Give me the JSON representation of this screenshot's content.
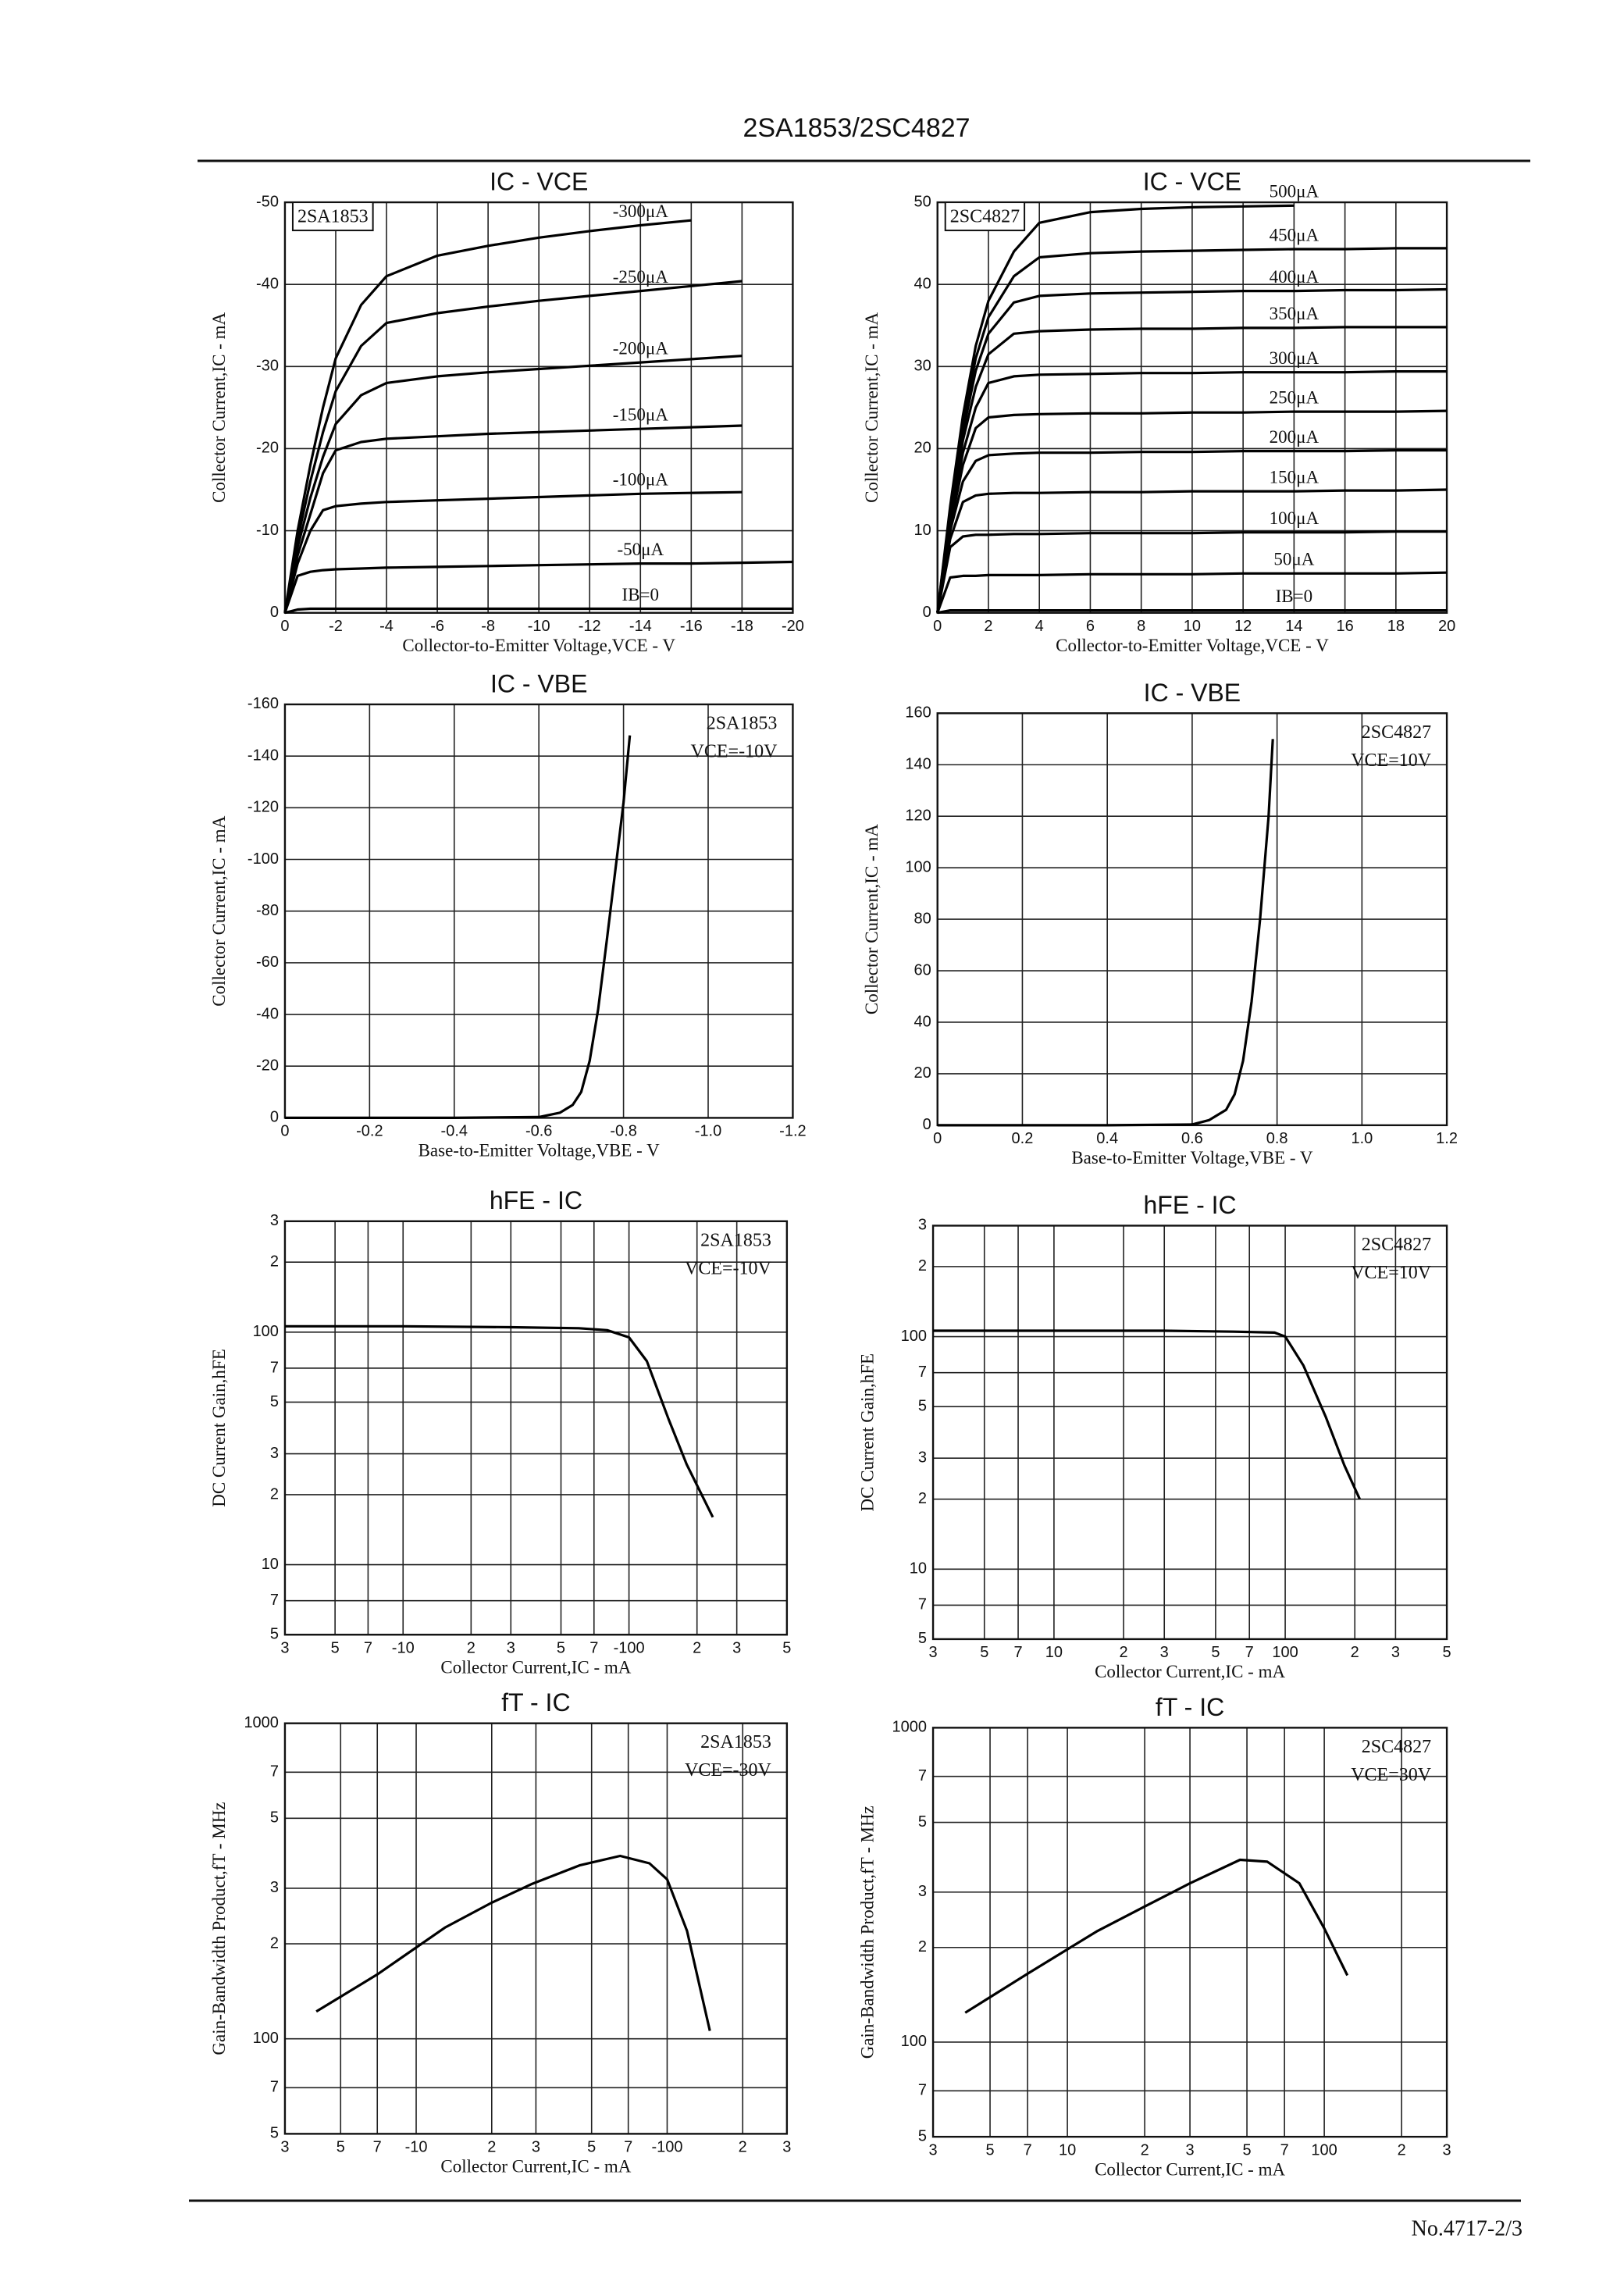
{
  "header": "2SA1853/2SC4827",
  "footer": "No.4717-2/3",
  "chart_data": [
    {
      "type": "line",
      "title": "IC - VCE",
      "annotations": [
        "2SA1853"
      ],
      "xlabel": "Collector-to-Emitter Voltage,VCE - V",
      "ylabel": "Collector Current,IC - mA",
      "grid": true,
      "xlim": [
        0,
        -20
      ],
      "xticks": [
        0,
        -2,
        -4,
        -6,
        -8,
        -10,
        -12,
        -14,
        -16,
        -18,
        -20
      ],
      "ylim": [
        0,
        -50
      ],
      "yticks": [
        0,
        -10,
        -20,
        -30,
        -40,
        -50
      ],
      "x": [
        0,
        -0.5,
        -1,
        -1.5,
        -2,
        -3,
        -4,
        -6,
        -8,
        -10,
        -12,
        -14,
        -16,
        -18,
        -20
      ],
      "series": [
        {
          "name": "IB=0",
          "color": "#000",
          "values": [
            0,
            -0.4,
            -0.5,
            -0.5,
            -0.5,
            -0.5,
            -0.5,
            -0.5,
            -0.5,
            -0.5,
            -0.5,
            -0.5,
            -0.5,
            -0.5,
            -0.5
          ]
        },
        {
          "name": "-50μA",
          "color": "#000",
          "values": [
            0,
            -4.5,
            -5,
            -5.2,
            -5.3,
            -5.4,
            -5.5,
            -5.6,
            -5.7,
            -5.8,
            -5.9,
            -6,
            -6,
            -6.1,
            -6.2
          ]
        },
        {
          "name": "-100μA",
          "color": "#000",
          "values": [
            0,
            -6,
            -10,
            -12.5,
            -13,
            -13.3,
            -13.5,
            -13.7,
            -13.9,
            -14.1,
            -14.3,
            -14.5,
            -14.6,
            -14.7,
            null
          ]
        },
        {
          "name": "-150μA",
          "color": "#000",
          "values": [
            0,
            -7,
            -12,
            -17,
            -19.8,
            -20.8,
            -21.2,
            -21.5,
            -21.8,
            -22,
            -22.2,
            -22.4,
            -22.6,
            -22.8,
            null
          ]
        },
        {
          "name": "-200μA",
          "color": "#000",
          "values": [
            0,
            -8,
            -14,
            -19,
            -23,
            -26.5,
            -28,
            -28.8,
            -29.3,
            -29.7,
            -30.1,
            -30.5,
            -30.9,
            -31.3,
            null
          ]
        },
        {
          "name": "-250μA",
          "color": "#000",
          "values": [
            0,
            -9,
            -16,
            -22,
            -27,
            -32.5,
            -35.3,
            -36.5,
            -37.3,
            -38,
            -38.6,
            -39.2,
            -39.8,
            -40.4,
            null
          ]
        },
        {
          "name": "-300μA",
          "color": "#000",
          "values": [
            0,
            -10,
            -18,
            -25,
            -31,
            -37.5,
            -41,
            -43.5,
            -44.7,
            -45.7,
            -46.5,
            -47.2,
            -47.8,
            null,
            null
          ]
        }
      ]
    },
    {
      "type": "line",
      "title": "IC - VCE",
      "annotations": [
        "2SC4827"
      ],
      "xlabel": "Collector-to-Emitter Voltage,VCE - V",
      "ylabel": "Collector Current,IC - mA",
      "grid": true,
      "xlim": [
        0,
        20
      ],
      "xticks": [
        0,
        2,
        4,
        6,
        8,
        10,
        12,
        14,
        16,
        18,
        20
      ],
      "ylim": [
        0,
        50
      ],
      "yticks": [
        0,
        10,
        20,
        30,
        40,
        50
      ],
      "x": [
        0,
        0.5,
        1,
        1.5,
        2,
        3,
        4,
        6,
        8,
        10,
        12,
        14,
        16,
        18,
        20
      ],
      "series": [
        {
          "name": "IB=0",
          "color": "#000",
          "values": [
            0,
            0.3,
            0.3,
            0.3,
            0.3,
            0.3,
            0.3,
            0.3,
            0.3,
            0.3,
            0.3,
            0.3,
            0.3,
            0.3,
            0.3
          ]
        },
        {
          "name": "50μA",
          "color": "#000",
          "values": [
            0,
            4.3,
            4.5,
            4.5,
            4.6,
            4.6,
            4.6,
            4.7,
            4.7,
            4.7,
            4.8,
            4.8,
            4.8,
            4.8,
            4.9
          ]
        },
        {
          "name": "100μA",
          "color": "#000",
          "values": [
            0,
            8,
            9.3,
            9.5,
            9.5,
            9.6,
            9.6,
            9.7,
            9.7,
            9.7,
            9.8,
            9.8,
            9.8,
            9.9,
            9.9
          ]
        },
        {
          "name": "150μA",
          "color": "#000",
          "values": [
            0,
            9,
            13.5,
            14.3,
            14.5,
            14.6,
            14.6,
            14.7,
            14.7,
            14.8,
            14.8,
            14.8,
            14.9,
            14.9,
            15
          ]
        },
        {
          "name": "200μA",
          "color": "#000",
          "values": [
            0,
            10,
            16,
            18.5,
            19.2,
            19.4,
            19.5,
            19.5,
            19.6,
            19.6,
            19.7,
            19.7,
            19.7,
            19.8,
            19.8
          ]
        },
        {
          "name": "250μA",
          "color": "#000",
          "values": [
            0,
            10.5,
            18,
            22.5,
            23.8,
            24.1,
            24.2,
            24.3,
            24.3,
            24.4,
            24.4,
            24.5,
            24.5,
            24.5,
            24.6
          ]
        },
        {
          "name": "300μA",
          "color": "#000",
          "values": [
            0,
            11,
            19.5,
            25,
            28,
            28.8,
            29,
            29.1,
            29.2,
            29.2,
            29.3,
            29.3,
            29.3,
            29.4,
            29.4
          ]
        },
        {
          "name": "350μA",
          "color": "#000",
          "values": [
            0,
            11.5,
            21,
            27.5,
            31.5,
            34,
            34.3,
            34.5,
            34.6,
            34.6,
            34.7,
            34.7,
            34.8,
            34.8,
            34.8
          ]
        },
        {
          "name": "400μA",
          "color": "#000",
          "values": [
            0,
            12,
            22,
            29.5,
            34,
            37.8,
            38.6,
            38.9,
            39,
            39.1,
            39.2,
            39.2,
            39.3,
            39.3,
            39.4
          ]
        },
        {
          "name": "450μA",
          "color": "#000",
          "values": [
            0,
            12.5,
            23,
            31,
            36,
            41,
            43.3,
            43.8,
            44,
            44.1,
            44.2,
            44.3,
            44.3,
            44.4,
            44.4
          ]
        },
        {
          "name": "500μA",
          "color": "#000",
          "values": [
            0,
            13,
            24,
            32.5,
            38,
            44,
            47.5,
            48.8,
            49.2,
            49.4,
            49.5,
            49.6,
            null,
            null,
            null
          ]
        }
      ]
    },
    {
      "type": "line",
      "title": "IC - VBE",
      "annotations": [
        "2SA1853",
        "VCE=-10V"
      ],
      "xlabel": "Base-to-Emitter Voltage,VBE - V",
      "ylabel": "Collector Current,IC - mA",
      "grid": true,
      "xlim": [
        0,
        -1.2
      ],
      "xticks": [
        0,
        -0.2,
        -0.4,
        -0.6,
        -0.8,
        {
          "value": -1,
          "label": "-1.0"
        },
        -1.2
      ],
      "ylim": [
        0,
        -160
      ],
      "yticks": [
        0,
        -20,
        -40,
        -60,
        -80,
        -100,
        -120,
        -140,
        -160
      ],
      "x": [
        0,
        -0.2,
        -0.4,
        -0.6,
        -0.65,
        -0.68,
        -0.7,
        -0.72,
        -0.74,
        -0.76,
        -0.78,
        -0.8,
        -0.815
      ],
      "series": [
        {
          "color": "#000",
          "values": [
            0,
            0,
            0,
            -0.3,
            -2,
            -5,
            -10,
            -22,
            -42,
            -68,
            -95,
            -122,
            -148
          ]
        }
      ]
    },
    {
      "type": "line",
      "title": "IC - VBE",
      "annotations": [
        "2SC4827",
        "VCE=10V"
      ],
      "xlabel": "Base-to-Emitter Voltage,VBE - V",
      "ylabel": "Collector Current,IC - mA",
      "grid": true,
      "xlim": [
        0,
        1.2
      ],
      "xticks": [
        0,
        0.2,
        0.4,
        0.6,
        0.8,
        {
          "value": 1,
          "label": "1.0"
        },
        1.2
      ],
      "ylim": [
        0,
        160
      ],
      "yticks": [
        0,
        20,
        40,
        60,
        80,
        100,
        120,
        140,
        160
      ],
      "x": [
        0,
        0.2,
        0.4,
        0.6,
        0.64,
        0.68,
        0.7,
        0.72,
        0.74,
        0.76,
        0.78,
        0.79
      ],
      "series": [
        {
          "color": "#000",
          "values": [
            0,
            0,
            0,
            0.3,
            2,
            6,
            12,
            25,
            48,
            80,
            120,
            150
          ]
        }
      ]
    },
    {
      "type": "line",
      "title": "hFE - IC",
      "annotations": [
        "2SA1853",
        "VCE=-10V"
      ],
      "xlabel": "Collector Current,IC - mA",
      "ylabel": "DC Current Gain,hFE",
      "grid": true,
      "xscale": "log",
      "yscale": "log",
      "xlim": [
        -3,
        -500
      ],
      "xticks": [
        {
          "value": -3,
          "label": "3"
        },
        {
          "value": -5,
          "label": "5"
        },
        {
          "value": -7,
          "label": "7"
        },
        -10,
        {
          "value": -20,
          "label": "2"
        },
        {
          "value": -30,
          "label": "3"
        },
        {
          "value": -50,
          "label": "5"
        },
        {
          "value": -70,
          "label": "7"
        },
        -100,
        {
          "value": -200,
          "label": "2"
        },
        {
          "value": -300,
          "label": "3"
        },
        {
          "value": -500,
          "label": "5"
        }
      ],
      "ylim": [
        5,
        300
      ],
      "yticks": [
        5,
        7,
        10,
        {
          "value": 20,
          "label": "2"
        },
        {
          "value": 30,
          "label": "3"
        },
        {
          "value": 50,
          "label": "5"
        },
        {
          "value": 70,
          "label": "7"
        },
        100,
        {
          "value": 200,
          "label": "2"
        },
        {
          "value": 300,
          "label": "3"
        }
      ],
      "x": [
        -3,
        -10,
        -30,
        -60,
        -80,
        -100,
        -120,
        -150,
        -180,
        -235
      ],
      "series": [
        {
          "color": "#000",
          "values": [
            106,
            106,
            105,
            104,
            102,
            95,
            75,
            42,
            27,
            16
          ]
        }
      ]
    },
    {
      "type": "line",
      "title": "hFE - IC",
      "annotations": [
        "2SC4827",
        "VCE=10V"
      ],
      "xlabel": "Collector Current,IC - mA",
      "ylabel": "DC Current Gain,hFE",
      "grid": true,
      "xscale": "log",
      "yscale": "log",
      "xlim": [
        3,
        500
      ],
      "xticks": [
        3,
        5,
        7,
        10,
        {
          "value": 20,
          "label": "2"
        },
        {
          "value": 30,
          "label": "3"
        },
        {
          "value": 50,
          "label": "5"
        },
        {
          "value": 70,
          "label": "7"
        },
        100,
        {
          "value": 200,
          "label": "2"
        },
        {
          "value": 300,
          "label": "3"
        },
        {
          "value": 500,
          "label": "5"
        }
      ],
      "ylim": [
        5,
        300
      ],
      "yticks": [
        5,
        7,
        10,
        {
          "value": 20,
          "label": "2"
        },
        {
          "value": 30,
          "label": "3"
        },
        {
          "value": 50,
          "label": "5"
        },
        {
          "value": 70,
          "label": "7"
        },
        100,
        {
          "value": 200,
          "label": "2"
        },
        {
          "value": 300,
          "label": "3"
        }
      ],
      "x": [
        3,
        10,
        30,
        60,
        90,
        100,
        120,
        150,
        180,
        210
      ],
      "series": [
        {
          "color": "#000",
          "values": [
            106,
            106,
            106,
            105,
            104,
            100,
            75,
            45,
            28,
            20
          ]
        }
      ]
    },
    {
      "type": "line",
      "title": "fT - IC",
      "annotations": [
        "2SA1853",
        "VCE=-30V"
      ],
      "xlabel": "Collector Current,IC - mA",
      "ylabel": "Gain-Bandwidth Product,fT - MHz",
      "grid": true,
      "xscale": "log",
      "yscale": "log",
      "xlim": [
        -3,
        -300
      ],
      "xticks": [
        {
          "value": -3,
          "label": "3"
        },
        {
          "value": -5,
          "label": "5"
        },
        {
          "value": -7,
          "label": "7"
        },
        -10,
        {
          "value": -20,
          "label": "2"
        },
        {
          "value": -30,
          "label": "3"
        },
        {
          "value": -50,
          "label": "5"
        },
        {
          "value": -70,
          "label": "7"
        },
        -100,
        {
          "value": -200,
          "label": "2"
        },
        {
          "value": -300,
          "label": "3"
        }
      ],
      "ylim": [
        50,
        1000
      ],
      "yticks": [
        {
          "value": 50,
          "label": "5"
        },
        {
          "value": 70,
          "label": "7"
        },
        100,
        {
          "value": 200,
          "label": "2"
        },
        {
          "value": 300,
          "label": "3"
        },
        {
          "value": 500,
          "label": "5"
        },
        {
          "value": 700,
          "label": "7"
        },
        1000
      ],
      "x": [
        -4,
        -7,
        -13,
        -20,
        -29,
        -45,
        -65,
        -85,
        -100,
        -120,
        -148
      ],
      "series": [
        {
          "color": "#000",
          "values": [
            122,
            160,
            225,
            270,
            310,
            355,
            380,
            360,
            320,
            220,
            106
          ]
        }
      ]
    },
    {
      "type": "line",
      "title": "fT - IC",
      "annotations": [
        "2SC4827",
        "VCE=30V"
      ],
      "xlabel": "Collector Current,IC - mA",
      "ylabel": "Gain-Bandwidth Product,fT - MHz",
      "grid": true,
      "xscale": "log",
      "yscale": "log",
      "xlim": [
        3,
        300
      ],
      "xticks": [
        3,
        5,
        7,
        10,
        {
          "value": 20,
          "label": "2"
        },
        {
          "value": 30,
          "label": "3"
        },
        {
          "value": 50,
          "label": "5"
        },
        {
          "value": 70,
          "label": "7"
        },
        100,
        {
          "value": 200,
          "label": "2"
        },
        {
          "value": 300,
          "label": "3"
        }
      ],
      "ylim": [
        50,
        1000
      ],
      "yticks": [
        {
          "value": 50,
          "label": "5"
        },
        {
          "value": 70,
          "label": "7"
        },
        100,
        {
          "value": 200,
          "label": "2"
        },
        {
          "value": 300,
          "label": "3"
        },
        {
          "value": 500,
          "label": "5"
        },
        {
          "value": 700,
          "label": "7"
        },
        1000
      ],
      "x": [
        4,
        7,
        13,
        20,
        30,
        47,
        60,
        80,
        100,
        123
      ],
      "series": [
        {
          "color": "#000",
          "values": [
            124,
            165,
            225,
            270,
            320,
            380,
            375,
            320,
            230,
            163
          ]
        }
      ]
    }
  ]
}
